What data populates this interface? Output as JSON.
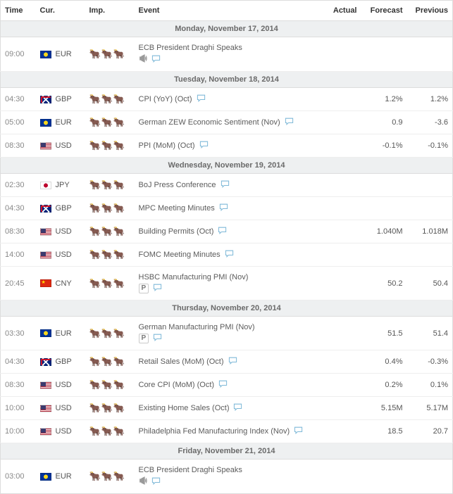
{
  "columns": {
    "time": "Time",
    "cur": "Cur.",
    "imp": "Imp.",
    "event": "Event",
    "actual": "Actual",
    "forecast": "Forecast",
    "previous": "Previous"
  },
  "days": [
    {
      "label": "Monday, November 17, 2014",
      "events": [
        {
          "time": "09:00",
          "currency": "EUR",
          "importance": 3,
          "name": "ECB President Draghi Speaks",
          "speech": true,
          "chat": true,
          "subline": true,
          "actual": "",
          "forecast": "",
          "previous": ""
        }
      ]
    },
    {
      "label": "Tuesday, November 18, 2014",
      "events": [
        {
          "time": "04:30",
          "currency": "GBP",
          "importance": 3,
          "name": "CPI (YoY) (Oct)",
          "chat": true,
          "actual": "",
          "forecast": "1.2%",
          "previous": "1.2%"
        },
        {
          "time": "05:00",
          "currency": "EUR",
          "importance": 3,
          "name": "German ZEW Economic Sentiment (Nov)",
          "chat": true,
          "actual": "",
          "forecast": "0.9",
          "previous": "-3.6"
        },
        {
          "time": "08:30",
          "currency": "USD",
          "importance": 2,
          "name": "PPI (MoM) (Oct)",
          "chat": true,
          "actual": "",
          "forecast": "-0.1%",
          "previous": "-0.1%"
        }
      ]
    },
    {
      "label": "Wednesday, November 19, 2014",
      "events": [
        {
          "time": "02:30",
          "currency": "JPY",
          "importance": 3,
          "name": "BoJ Press Conference",
          "chat": true,
          "actual": "",
          "forecast": "",
          "previous": ""
        },
        {
          "time": "04:30",
          "currency": "GBP",
          "importance": 3,
          "name": "MPC Meeting Minutes",
          "chat": true,
          "actual": "",
          "forecast": "",
          "previous": ""
        },
        {
          "time": "08:30",
          "currency": "USD",
          "importance": 3,
          "name": "Building Permits (Oct)",
          "chat": true,
          "actual": "",
          "forecast": "1.040M",
          "previous": "1.018M"
        },
        {
          "time": "14:00",
          "currency": "USD",
          "importance": 3,
          "name": "FOMC Meeting Minutes",
          "chat": true,
          "actual": "",
          "forecast": "",
          "previous": ""
        },
        {
          "time": "20:45",
          "currency": "CNY",
          "importance": 3,
          "name": "HSBC Manufacturing PMI (Nov)",
          "chat": true,
          "preliminary": true,
          "subline": true,
          "actual": "",
          "forecast": "50.2",
          "previous": "50.4"
        }
      ]
    },
    {
      "label": "Thursday, November 20, 2014",
      "events": [
        {
          "time": "03:30",
          "currency": "EUR",
          "importance": 3,
          "name": "German Manufacturing PMI (Nov)",
          "chat": true,
          "preliminary": true,
          "subline": true,
          "actual": "",
          "forecast": "51.5",
          "previous": "51.4"
        },
        {
          "time": "04:30",
          "currency": "GBP",
          "importance": 3,
          "name": "Retail Sales (MoM) (Oct)",
          "chat": true,
          "actual": "",
          "forecast": "0.4%",
          "previous": "-0.3%"
        },
        {
          "time": "08:30",
          "currency": "USD",
          "importance": 3,
          "name": "Core CPI (MoM) (Oct)",
          "chat": true,
          "actual": "",
          "forecast": "0.2%",
          "previous": "0.1%"
        },
        {
          "time": "10:00",
          "currency": "USD",
          "importance": 3,
          "name": "Existing Home Sales (Oct)",
          "chat": true,
          "actual": "",
          "forecast": "5.15M",
          "previous": "5.17M"
        },
        {
          "time": "10:00",
          "currency": "USD",
          "importance": 3,
          "name": "Philadelphia Fed Manufacturing Index (Nov)",
          "chat": true,
          "actual": "",
          "forecast": "18.5",
          "previous": "20.7"
        }
      ]
    },
    {
      "label": "Friday, November 21, 2014",
      "events": [
        {
          "time": "03:00",
          "currency": "EUR",
          "importance": 3,
          "name": "ECB President Draghi Speaks",
          "speech": true,
          "chat": true,
          "subline": true,
          "actual": "",
          "forecast": "",
          "previous": ""
        }
      ]
    }
  ],
  "badges": {
    "preliminary": "P"
  }
}
